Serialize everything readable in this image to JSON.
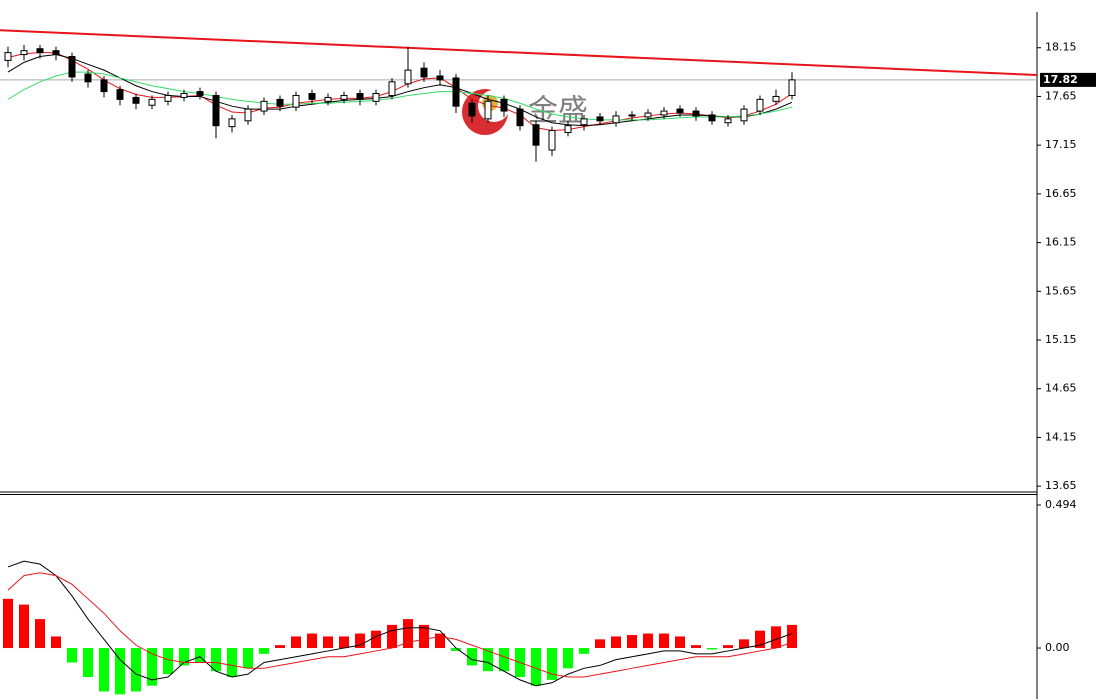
{
  "chart_data": [
    {
      "type": "candlestick",
      "open": [
        18.02,
        18.08,
        18.14,
        18.12,
        18.06,
        17.88,
        17.82,
        17.72,
        17.64,
        17.56,
        17.6,
        17.64,
        17.7,
        17.66,
        17.34,
        17.4,
        17.5,
        17.62,
        17.54,
        17.68,
        17.6,
        17.62,
        17.68,
        17.6,
        17.66,
        17.78,
        17.94,
        17.86,
        17.84,
        17.58,
        17.42,
        17.62,
        17.52,
        17.36,
        17.1,
        17.28,
        17.36,
        17.44,
        17.38,
        17.46,
        17.44,
        17.46,
        17.52,
        17.5,
        17.46,
        17.38,
        17.4,
        17.5,
        17.6,
        17.66
      ],
      "high": [
        18.16,
        18.18,
        18.18,
        18.16,
        18.1,
        17.92,
        17.86,
        17.76,
        17.68,
        17.66,
        17.7,
        17.72,
        17.74,
        17.7,
        17.46,
        17.56,
        17.64,
        17.66,
        17.7,
        17.72,
        17.68,
        17.7,
        17.72,
        17.72,
        17.84,
        18.16,
        18.0,
        17.92,
        17.88,
        17.62,
        17.66,
        17.66,
        17.56,
        17.4,
        17.34,
        17.4,
        17.46,
        17.48,
        17.5,
        17.5,
        17.52,
        17.54,
        17.56,
        17.54,
        17.5,
        17.46,
        17.56,
        17.66,
        17.72,
        17.9
      ],
      "low": [
        17.95,
        18.02,
        18.04,
        18.02,
        17.8,
        17.74,
        17.64,
        17.56,
        17.52,
        17.52,
        17.56,
        17.6,
        17.62,
        17.22,
        17.28,
        17.36,
        17.46,
        17.5,
        17.5,
        17.58,
        17.56,
        17.58,
        17.56,
        17.56,
        17.62,
        17.74,
        17.8,
        17.76,
        17.48,
        17.38,
        17.38,
        17.44,
        17.3,
        16.98,
        17.04,
        17.24,
        17.3,
        17.36,
        17.34,
        17.4,
        17.4,
        17.42,
        17.44,
        17.4,
        17.36,
        17.34,
        17.36,
        17.46,
        17.56,
        17.62
      ],
      "close": [
        18.1,
        18.12,
        18.1,
        18.08,
        17.85,
        17.8,
        17.7,
        17.62,
        17.58,
        17.62,
        17.66,
        17.68,
        17.66,
        17.35,
        17.42,
        17.52,
        17.6,
        17.55,
        17.66,
        17.62,
        17.64,
        17.66,
        17.62,
        17.68,
        17.8,
        17.92,
        17.85,
        17.82,
        17.55,
        17.45,
        17.6,
        17.5,
        17.35,
        17.15,
        17.3,
        17.35,
        17.42,
        17.4,
        17.45,
        17.45,
        17.48,
        17.5,
        17.48,
        17.45,
        17.4,
        17.42,
        17.52,
        17.62,
        17.65,
        17.82
      ],
      "series": [
        {
          "color": "#e8141a",
          "values": [
            18.05,
            18.09,
            18.1,
            18.1,
            18.02,
            17.93,
            17.82,
            17.73,
            17.67,
            17.64,
            17.64,
            17.65,
            17.66,
            17.56,
            17.49,
            17.48,
            17.53,
            17.54,
            17.58,
            17.6,
            17.62,
            17.63,
            17.63,
            17.65,
            17.7,
            17.78,
            17.83,
            17.84,
            17.74,
            17.62,
            17.56,
            17.53,
            17.46,
            17.33,
            17.3,
            17.31,
            17.34,
            17.37,
            17.4,
            17.43,
            17.45,
            17.47,
            17.48,
            17.47,
            17.45,
            17.43,
            17.45,
            17.5,
            17.57,
            17.68
          ]
        },
        {
          "color": "#000000",
          "values": [
            17.9,
            18.0,
            18.06,
            18.08,
            18.04,
            17.98,
            17.92,
            17.84,
            17.76,
            17.7,
            17.66,
            17.65,
            17.65,
            17.6,
            17.55,
            17.52,
            17.52,
            17.52,
            17.55,
            17.57,
            17.59,
            17.61,
            17.62,
            17.63,
            17.65,
            17.7,
            17.74,
            17.77,
            17.74,
            17.68,
            17.62,
            17.58,
            17.52,
            17.44,
            17.38,
            17.36,
            17.35,
            17.36,
            17.38,
            17.4,
            17.42,
            17.44,
            17.46,
            17.46,
            17.45,
            17.44,
            17.44,
            17.47,
            17.52,
            17.59
          ]
        },
        {
          "color": "#33dd66",
          "values": [
            17.62,
            17.72,
            17.8,
            17.86,
            17.9,
            17.9,
            17.88,
            17.84,
            17.8,
            17.76,
            17.73,
            17.7,
            17.68,
            17.65,
            17.62,
            17.6,
            17.58,
            17.57,
            17.57,
            17.58,
            17.58,
            17.59,
            17.6,
            17.61,
            17.63,
            17.66,
            17.68,
            17.7,
            17.7,
            17.68,
            17.66,
            17.63,
            17.58,
            17.52,
            17.47,
            17.44,
            17.42,
            17.41,
            17.41,
            17.41,
            17.41,
            17.42,
            17.43,
            17.44,
            17.44,
            17.44,
            17.45,
            17.47,
            17.5,
            17.54
          ]
        }
      ],
      "trendline": {
        "color": "#e8141a",
        "values": [
          18.33,
          17.87
        ]
      },
      "current_price": 17.82,
      "watermark": "金盛",
      "ylim": [
        13.59,
        18.64
      ],
      "yticks": [
        18.15,
        17.65,
        17.15,
        16.65,
        16.15,
        15.65,
        15.15,
        14.65,
        14.15,
        13.65
      ]
    },
    {
      "type": "macd",
      "histogram": {
        "up_color": "#ff0000",
        "down_color": "#00ff00",
        "values": [
          0.17,
          0.15,
          0.1,
          0.04,
          -0.05,
          -0.1,
          -0.15,
          -0.16,
          -0.15,
          -0.13,
          -0.09,
          -0.06,
          -0.05,
          -0.08,
          -0.1,
          -0.07,
          -0.02,
          0.01,
          0.04,
          0.05,
          0.04,
          0.04,
          0.05,
          0.06,
          0.08,
          0.1,
          0.08,
          0.05,
          -0.01,
          -0.06,
          -0.08,
          -0.08,
          -0.1,
          -0.13,
          -0.11,
          -0.07,
          -0.02,
          0.03,
          0.04,
          0.045,
          0.05,
          0.05,
          0.04,
          0.01,
          -0.005,
          0.01,
          0.03,
          0.06,
          0.075,
          0.08
        ]
      },
      "series": [
        {
          "color": "#000000",
          "values": [
            0.28,
            0.3,
            0.29,
            0.25,
            0.18,
            0.1,
            0.03,
            -0.04,
            -0.09,
            -0.11,
            -0.1,
            -0.05,
            -0.03,
            -0.08,
            -0.1,
            -0.09,
            -0.05,
            -0.04,
            -0.03,
            -0.02,
            -0.01,
            0.0,
            0.01,
            0.04,
            0.06,
            0.07,
            0.07,
            0.06,
            0.0,
            -0.04,
            -0.05,
            -0.08,
            -0.11,
            -0.13,
            -0.12,
            -0.09,
            -0.07,
            -0.06,
            -0.04,
            -0.03,
            -0.02,
            -0.01,
            -0.01,
            -0.02,
            -0.02,
            -0.01,
            0.0,
            0.01,
            0.03,
            0.05
          ]
        },
        {
          "color": "#e8141a",
          "values": [
            0.2,
            0.25,
            0.26,
            0.25,
            0.22,
            0.17,
            0.12,
            0.06,
            0.01,
            -0.02,
            -0.04,
            -0.05,
            -0.05,
            -0.05,
            -0.06,
            -0.07,
            -0.07,
            -0.06,
            -0.05,
            -0.04,
            -0.03,
            -0.03,
            -0.02,
            -0.01,
            0.0,
            0.02,
            0.03,
            0.04,
            0.03,
            0.01,
            -0.01,
            -0.03,
            -0.05,
            -0.07,
            -0.09,
            -0.1,
            -0.1,
            -0.09,
            -0.08,
            -0.07,
            -0.06,
            -0.05,
            -0.04,
            -0.03,
            -0.03,
            -0.03,
            -0.02,
            -0.01,
            0.0,
            0.02
          ]
        }
      ],
      "ylim": [
        -0.176,
        0.532
      ],
      "yticks": [
        0.494,
        {
          "value": 0,
          "label": "0.00"
        }
      ]
    }
  ]
}
